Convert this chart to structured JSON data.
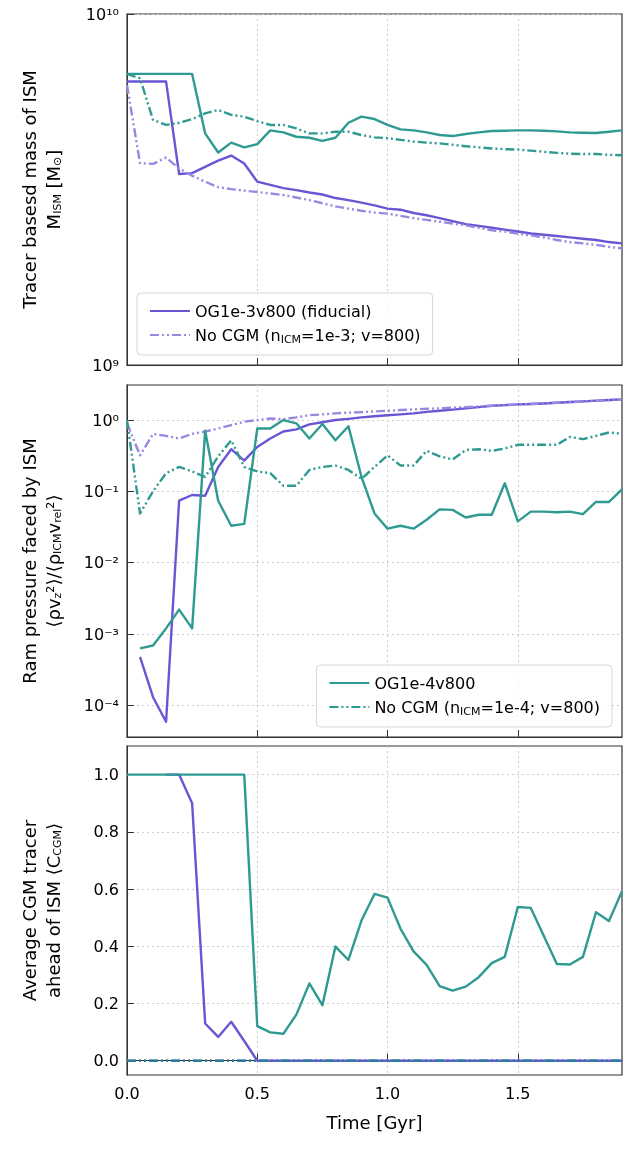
{
  "chart_data": [
    {
      "type": "line",
      "ylabel": "Tracer basesd mass of ISM\nM$_{ISM}$ [M$_{⊙}$]",
      "log": "y",
      "grid": true,
      "legend": "bottom left",
      "marker": "none",
      "tick_labels": "y",
      "x": [
        0,
        0.05,
        0.1,
        0.15,
        0.2,
        0.25,
        0.3,
        0.35,
        0.4,
        0.45,
        0.5,
        0.55,
        0.6,
        0.65,
        0.7,
        0.75,
        0.8,
        0.85,
        0.9,
        0.95,
        1.0,
        1.05,
        1.1,
        1.15,
        1.2,
        1.25,
        1.3,
        1.35,
        1.4,
        1.45,
        1.5,
        1.55,
        1.6,
        1.65,
        1.7,
        1.75,
        1.8,
        1.85,
        1.9
      ],
      "xlim": [
        0,
        1.9
      ],
      "xticks": [
        0,
        0.5,
        1.0,
        1.5
      ],
      "ylim": [
        1000000000.0,
        10000000000.0
      ],
      "yticks": [
        {
          "value": 1000000000.0,
          "label": "10⁹"
        },
        {
          "value": 10000000000.0,
          "label": "10¹⁰"
        }
      ],
      "series": [
        {
          "name": "OG1e-3v800 (fiducial)",
          "color": "#6a55d4",
          "line_style": "solid",
          "values": [
            6420000000.0,
            6420000000.0,
            6420000000.0,
            6420000000.0,
            3500000000.0,
            3520000000.0,
            3670000000.0,
            3820000000.0,
            3950000000.0,
            3750000000.0,
            3330000000.0,
            3260000000.0,
            3190000000.0,
            3150000000.0,
            3100000000.0,
            3060000000.0,
            2990000000.0,
            2950000000.0,
            2900000000.0,
            2850000000.0,
            2790000000.0,
            2770000000.0,
            2710000000.0,
            2670000000.0,
            2620000000.0,
            2570000000.0,
            2520000000.0,
            2490000000.0,
            2460000000.0,
            2430000000.0,
            2400000000.0,
            2370000000.0,
            2350000000.0,
            2330000000.0,
            2310000000.0,
            2290000000.0,
            2270000000.0,
            2240000000.0,
            2220000000.0
          ]
        },
        {
          "name": "No CGM (n$_{ICM}$=1e-3; v=800)",
          "color": "#9a88e0",
          "line_style": "dashdot",
          "values": [
            6280000000.0,
            3760000000.0,
            3740000000.0,
            3900000000.0,
            3630000000.0,
            3460000000.0,
            3330000000.0,
            3210000000.0,
            3170000000.0,
            3140000000.0,
            3110000000.0,
            3080000000.0,
            3050000000.0,
            3000000000.0,
            2950000000.0,
            2890000000.0,
            2830000000.0,
            2790000000.0,
            2750000000.0,
            2720000000.0,
            2700000000.0,
            2660000000.0,
            2620000000.0,
            2590000000.0,
            2560000000.0,
            2530000000.0,
            2500000000.0,
            2460000000.0,
            2420000000.0,
            2400000000.0,
            2370000000.0,
            2340000000.0,
            2310000000.0,
            2270000000.0,
            2240000000.0,
            2220000000.0,
            2200000000.0,
            2170000000.0,
            2150000000.0
          ]
        },
        {
          "color": "#2e9a92",
          "line_style": "solid",
          "values": [
            6750000000.0,
            6750000000.0,
            6750000000.0,
            6750000000.0,
            6750000000.0,
            6750000000.0,
            4570000000.0,
            4030000000.0,
            4300000000.0,
            4170000000.0,
            4260000000.0,
            4660000000.0,
            4600000000.0,
            4470000000.0,
            4440000000.0,
            4350000000.0,
            4440000000.0,
            4900000000.0,
            5100000000.0,
            5020000000.0,
            4830000000.0,
            4690000000.0,
            4660000000.0,
            4600000000.0,
            4520000000.0,
            4490000000.0,
            4550000000.0,
            4600000000.0,
            4640000000.0,
            4650000000.0,
            4660000000.0,
            4660000000.0,
            4650000000.0,
            4630000000.0,
            4600000000.0,
            4590000000.0,
            4580000000.0,
            4620000000.0,
            4660000000.0
          ]
        },
        {
          "color": "#2e9a92",
          "line_style": "dashdot",
          "values": [
            6750000000.0,
            6560000000.0,
            4990000000.0,
            4830000000.0,
            4900000000.0,
            5020000000.0,
            5210000000.0,
            5330000000.0,
            5160000000.0,
            5100000000.0,
            4950000000.0,
            4830000000.0,
            4830000000.0,
            4720000000.0,
            4570000000.0,
            4570000000.0,
            4620000000.0,
            4620000000.0,
            4520000000.0,
            4450000000.0,
            4430000000.0,
            4380000000.0,
            4330000000.0,
            4300000000.0,
            4280000000.0,
            4240000000.0,
            4200000000.0,
            4170000000.0,
            4140000000.0,
            4120000000.0,
            4110000000.0,
            4080000000.0,
            4050000000.0,
            4020000000.0,
            4000000000.0,
            3990000000.0,
            3990000000.0,
            3970000000.0,
            3960000000.0
          ]
        }
      ]
    },
    {
      "type": "line",
      "ylabel": "Ram pressure faced by ISM\n⟨ρv$_{z}$²⟩/⟨ρ$_{ICM}$v$_{rel}$²⟩",
      "log": "y",
      "grid": true,
      "legend": "bottom right",
      "marker": "none",
      "tick_labels": "y",
      "x": [
        0,
        0.05,
        0.1,
        0.15,
        0.2,
        0.25,
        0.3,
        0.35,
        0.4,
        0.45,
        0.5,
        0.55,
        0.6,
        0.65,
        0.7,
        0.75,
        0.8,
        0.85,
        0.9,
        0.95,
        1.0,
        1.05,
        1.1,
        1.15,
        1.2,
        1.25,
        1.3,
        1.35,
        1.4,
        1.45,
        1.5,
        1.55,
        1.6,
        1.65,
        1.7,
        1.75,
        1.8,
        1.85,
        1.9
      ],
      "xlim": [
        0,
        1.9
      ],
      "xticks": [
        0,
        0.5,
        1.0,
        1.5
      ],
      "ylim": [
        3.6e-05,
        3.1
      ],
      "yticks": [
        {
          "value": 0.0001,
          "label": "10⁻⁴"
        },
        {
          "value": 0.001,
          "label": "10⁻³"
        },
        {
          "value": 0.01,
          "label": "10⁻²"
        },
        {
          "value": 0.1,
          "label": "10⁻¹"
        },
        {
          "value": 1,
          "label": "10⁰"
        }
      ],
      "series": [
        {
          "color": "#6a55d4",
          "line_style": "solid",
          "values": [
            null,
            0.00048,
            0.00013,
            5.9e-05,
            0.074,
            0.089,
            0.087,
            0.22,
            0.39,
            0.27,
            0.42,
            0.55,
            0.69,
            0.74,
            0.87,
            0.93,
            1.0,
            1.04,
            1.09,
            1.13,
            1.17,
            1.2,
            1.24,
            1.3,
            1.35,
            1.4,
            1.46,
            1.52,
            1.59,
            1.62,
            1.66,
            1.68,
            1.71,
            1.75,
            1.79,
            1.83,
            1.87,
            1.91,
            1.95
          ]
        },
        {
          "color": "#9a88e0",
          "line_style": "dashdot",
          "values": [
            0.9,
            0.32,
            0.64,
            0.6,
            0.55,
            0.64,
            0.69,
            0.76,
            0.85,
            0.95,
            1.0,
            1.05,
            1.03,
            1.09,
            1.17,
            1.2,
            1.24,
            1.27,
            1.29,
            1.32,
            1.35,
            1.38,
            1.41,
            1.44,
            1.46,
            1.49,
            1.52,
            1.55,
            1.59,
            1.62,
            1.64,
            1.68,
            1.72,
            1.75,
            1.78,
            1.82,
            1.86,
            1.9,
            1.95
          ]
        },
        {
          "name": "OG1e-4v800",
          "color": "#2e9a92",
          "line_style": "solid",
          "values": [
            null,
            0.00063,
            0.00069,
            0.0012,
            0.0022,
            0.0012,
            0.71,
            0.074,
            0.033,
            0.035,
            0.76,
            0.76,
            1.0,
            0.9,
            0.55,
            0.88,
            0.52,
            0.82,
            0.16,
            0.049,
            0.03,
            0.033,
            0.03,
            0.04,
            0.056,
            0.055,
            0.043,
            0.047,
            0.047,
            0.13,
            0.038,
            0.052,
            0.052,
            0.051,
            0.052,
            0.048,
            0.071,
            0.071,
            0.107
          ]
        },
        {
          "name": "No CGM (n$_{ICM}$=1e-4; v=800)",
          "color": "#2e9a92",
          "line_style": "dashdot",
          "values": [
            1.0,
            0.049,
            0.1,
            0.18,
            0.22,
            0.19,
            0.16,
            0.31,
            0.52,
            0.22,
            0.19,
            0.18,
            0.12,
            0.12,
            0.2,
            0.22,
            0.23,
            0.2,
            0.15,
            0.22,
            0.32,
            0.23,
            0.23,
            0.37,
            0.31,
            0.28,
            0.38,
            0.39,
            0.37,
            0.4,
            0.45,
            0.45,
            0.45,
            0.45,
            0.58,
            0.54,
            0.6,
            0.67,
            0.64
          ]
        }
      ]
    },
    {
      "type": "line",
      "xlabel": "Time [Gyr]",
      "ylabel": "Average CGM tracer\nahead of ISM ⟨C$_{CGM}$⟩",
      "grid": true,
      "marker": "none",
      "x": [
        0,
        0.05,
        0.1,
        0.15,
        0.2,
        0.25,
        0.3,
        0.35,
        0.4,
        0.45,
        0.5,
        0.55,
        0.6,
        0.65,
        0.7,
        0.75,
        0.8,
        0.85,
        0.9,
        0.95,
        1.0,
        1.05,
        1.1,
        1.15,
        1.2,
        1.25,
        1.3,
        1.35,
        1.4,
        1.45,
        1.5,
        1.55,
        1.6,
        1.65,
        1.7,
        1.75,
        1.8,
        1.85,
        1.9
      ],
      "xlim": [
        0,
        1.9
      ],
      "xticks": [
        {
          "value": 0,
          "label": "0.0"
        },
        {
          "value": 0.5,
          "label": "0.5"
        },
        {
          "value": 1.0,
          "label": "1.0"
        },
        {
          "value": 1.5,
          "label": "1.5"
        }
      ],
      "ylim": [
        -0.05,
        1.1
      ],
      "yticks": [
        {
          "value": 0,
          "label": "0.0"
        },
        {
          "value": 0.2,
          "label": "0.2"
        },
        {
          "value": 0.4,
          "label": "0.4"
        },
        {
          "value": 0.6,
          "label": "0.6"
        },
        {
          "value": 0.8,
          "label": "0.8"
        },
        {
          "value": 1.0,
          "label": "1.0"
        }
      ],
      "series": [
        {
          "color": "#6a55d4",
          "line_style": "solid",
          "values": [
            null,
            null,
            null,
            1,
            1,
            0.9,
            0.13,
            0.083,
            0.136,
            0.069,
            0,
            0,
            0,
            0,
            0,
            0,
            0,
            0,
            0,
            0,
            0,
            0,
            0,
            0,
            0,
            0,
            0,
            0,
            0,
            0,
            0,
            0,
            0,
            0,
            0,
            0,
            0,
            0,
            0
          ]
        },
        {
          "color": "#9a88e0",
          "line_style": "dashdot",
          "values": [
            0,
            0,
            0,
            0,
            0,
            0,
            0,
            0,
            0,
            0,
            0,
            0,
            0,
            0,
            0,
            0,
            0,
            0,
            0,
            0,
            0,
            0,
            0,
            0,
            0,
            0,
            0,
            0,
            0,
            0,
            0,
            0,
            0,
            0,
            0,
            0,
            0,
            0,
            0
          ]
        },
        {
          "color": "#2e9a92",
          "line_style": "solid",
          "values": [
            1,
            1,
            1,
            1,
            1,
            1,
            1,
            1,
            1,
            1,
            0.121,
            0.099,
            0.094,
            0.161,
            0.27,
            0.194,
            0.399,
            0.352,
            0.49,
            0.583,
            0.57,
            0.461,
            0.382,
            0.335,
            0.261,
            0.245,
            0.259,
            0.292,
            0.341,
            0.363,
            0.537,
            0.534,
            0.436,
            0.338,
            0.336,
            0.363,
            0.519,
            0.488,
            0.592
          ]
        },
        {
          "color": "#2a7f9a",
          "line_style": "dashdot",
          "values": [
            0,
            0,
            0,
            0,
            0,
            0,
            0,
            0,
            0,
            0,
            0,
            0,
            0,
            0,
            0,
            0,
            0,
            0,
            0,
            0,
            0,
            0,
            0,
            0,
            0,
            0,
            0,
            0,
            0,
            0,
            0,
            0,
            0,
            0,
            0,
            0,
            0,
            0,
            0
          ]
        }
      ]
    }
  ]
}
